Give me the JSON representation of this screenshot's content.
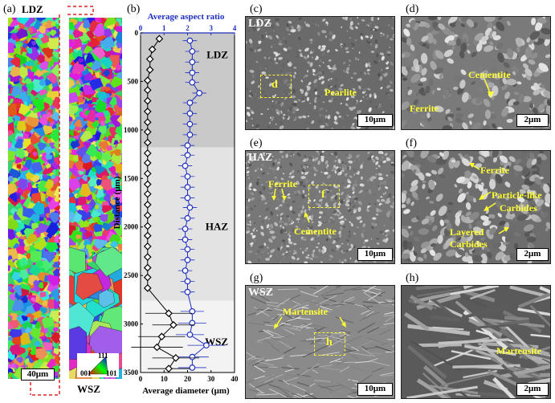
{
  "panels": {
    "a": "(a)",
    "b": "(b)",
    "c": "(c)",
    "d": "(d)",
    "e": "(e)",
    "f": "(f)",
    "g": "(g)",
    "h": "(h)"
  },
  "ebsd": {
    "ldz_label": "LDZ",
    "wsz_label": "WSZ",
    "scalebar": "40μm",
    "ipf": {
      "top": "111",
      "left": "001",
      "right": "101"
    }
  },
  "sem": {
    "c": {
      "tag": "LDZ",
      "box": "d",
      "labels": [
        "Pearlite"
      ],
      "scalebar": "10μm"
    },
    "d": {
      "labels": [
        "Cementite",
        "Ferrite"
      ],
      "scalebar": "2μm"
    },
    "e": {
      "tag": "HAZ",
      "box": "f",
      "labels": [
        "Ferrite",
        "Cementite"
      ],
      "scalebar": "10μm"
    },
    "f": {
      "labels": [
        "Ferrite",
        "Particle-like",
        "Carbides",
        "Layered",
        "Carbides"
      ],
      "scalebar": "2μm"
    },
    "g": {
      "tag": "WSZ",
      "box": "h",
      "labels": [
        "Martensite"
      ],
      "scalebar": "10μm"
    },
    "h": {
      "labels": [
        "Martensite"
      ],
      "scalebar": "2μm"
    }
  },
  "colors": {
    "zone_ldz": "#c9c9c9",
    "zone_haz": "#e3e3e3",
    "zone_wsz": "#f3f3f3",
    "aspect_series": "#1f2fbf",
    "diameter_series": "#000000",
    "annotation": "#ffff33"
  },
  "chart_data": {
    "type": "line",
    "orientation": "vertical-depth",
    "ylabel": "Distance (μm)",
    "xlabel_bottom": "Average diameter (μm)",
    "xlabel_top": "Average aspect ratio",
    "ylim": [
      0,
      3500
    ],
    "xlim_bottom": [
      0,
      40
    ],
    "xlim_top": [
      0,
      4
    ],
    "yticks": [
      0,
      500,
      1000,
      1500,
      2000,
      2500,
      3000,
      3500
    ],
    "xticks_bottom": [
      0,
      10,
      20,
      30,
      40
    ],
    "xticks_top": [
      0,
      1,
      2,
      3,
      4
    ],
    "zones": [
      {
        "name": "LDZ",
        "from": 0,
        "to": 1180
      },
      {
        "name": "HAZ",
        "from": 1180,
        "to": 2760
      },
      {
        "name": "WSZ",
        "from": 2760,
        "to": 3500
      }
    ],
    "series": [
      {
        "axis": "top",
        "distance": [
          80,
          190,
          300,
          410,
          510,
          620,
          720,
          830,
          940,
          1050,
          1160,
          1260,
          1370,
          1480,
          1590,
          1700,
          1800,
          1910,
          2020,
          2130,
          2230,
          2340,
          2450,
          2560,
          2670,
          2870,
          2990,
          3110,
          3220,
          3340,
          3450
        ],
        "values": [
          2.1,
          2.2,
          2.2,
          2.2,
          2.2,
          2.5,
          2.1,
          2.1,
          2.1,
          2.1,
          2.0,
          2.0,
          1.9,
          2.0,
          2.0,
          2.0,
          2.1,
          2.0,
          1.9,
          1.9,
          2.0,
          2.0,
          1.9,
          2.0,
          2.0,
          2.2,
          2.2,
          2.1,
          2.8,
          2.2,
          2.2
        ],
        "error": [
          0.3,
          0.3,
          0.3,
          0.3,
          0.3,
          0.3,
          0.3,
          0.3,
          0.3,
          0.3,
          0.3,
          0.3,
          0.3,
          0.3,
          0.3,
          0.3,
          0.3,
          0.3,
          0.3,
          0.3,
          0.3,
          0.3,
          0.3,
          0.3,
          0.3,
          0.5,
          0.6,
          0.6,
          0.8,
          0.7,
          0.6
        ]
      },
      {
        "axis": "bottom",
        "distance": [
          60,
          170,
          270,
          380,
          490,
          590,
          700,
          810,
          920,
          1020,
          1130,
          1240,
          1340,
          1450,
          1560,
          1660,
          1770,
          1880,
          1990,
          2090,
          2200,
          2310,
          2420,
          2520,
          2630,
          2890,
          3010,
          3130,
          3240,
          3350,
          3460
        ],
        "values": [
          8,
          5,
          4,
          4,
          3,
          3,
          3,
          3,
          3,
          3,
          3,
          3,
          3,
          3,
          3,
          3,
          3,
          3,
          3,
          3,
          3,
          3,
          3,
          3,
          3,
          12,
          14,
          9,
          7,
          15,
          12
        ],
        "error": [
          1,
          1,
          0.5,
          0.5,
          0.5,
          0.5,
          0.5,
          0.5,
          0.5,
          0.5,
          0.5,
          0.5,
          0.5,
          0.5,
          0.5,
          0.5,
          0.5,
          0.5,
          0.5,
          0.5,
          0.5,
          0.5,
          0.5,
          0.5,
          0.5,
          10,
          9,
          10,
          11,
          10,
          9
        ]
      }
    ],
    "zone_labels": [
      "LDZ",
      "HAZ",
      "WSZ"
    ]
  }
}
